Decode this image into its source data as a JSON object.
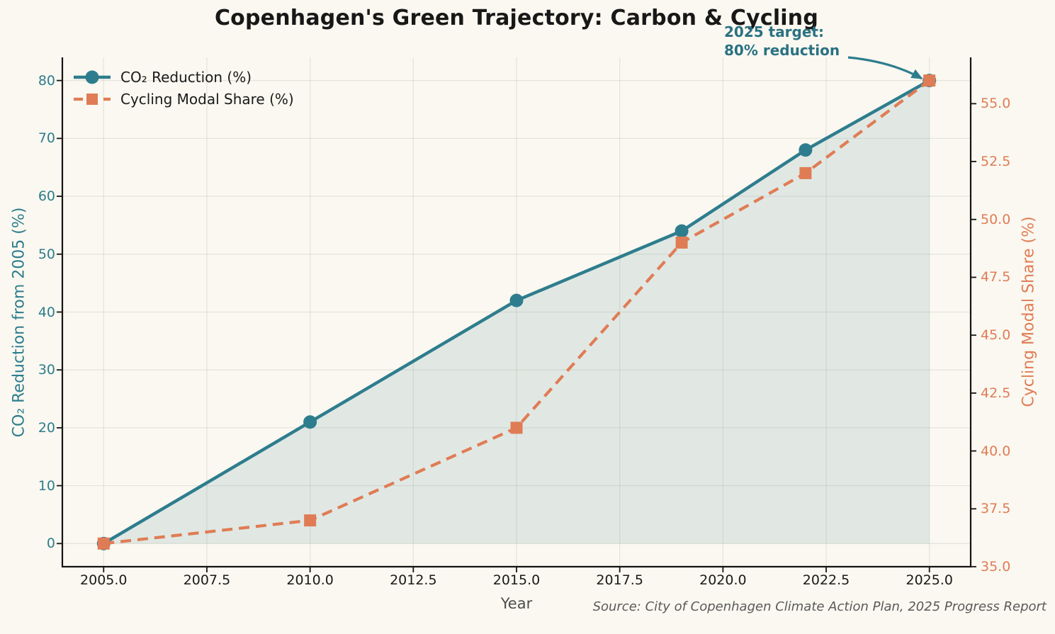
{
  "chart_data": {
    "type": "line",
    "title": "Copenhagen's Green Trajectory: Carbon & Cycling",
    "xlabel": "Year",
    "ylabel_left": "CO₂ Reduction from 2005 (%)",
    "ylabel_right": "Cycling Modal Share (%)",
    "source": "Source: City of Copenhagen Climate Action Plan, 2025 Progress Report",
    "x": [
      2005,
      2010,
      2015,
      2019,
      2022,
      2025
    ],
    "series": [
      {
        "name": "CO₂ Reduction (%)",
        "axis": "left",
        "values": [
          0,
          21,
          42,
          54,
          68,
          80
        ],
        "color": "#2e7d8e",
        "style": "solid",
        "marker": "circle",
        "fill_to_zero": true
      },
      {
        "name": "Cycling Modal Share (%)",
        "axis": "right",
        "values": [
          36,
          37,
          41,
          49,
          52,
          56
        ],
        "color": "#e07c55",
        "style": "dashed",
        "marker": "square",
        "fill_to_zero": false
      }
    ],
    "xlim": [
      2004,
      2026
    ],
    "ylim_left": [
      -4,
      84
    ],
    "ylim_right": [
      35,
      57
    ],
    "x_ticks": [
      {
        "value": 2005,
        "label": "2005.0"
      },
      {
        "value": 2007.5,
        "label": "2007.5"
      },
      {
        "value": 2010,
        "label": "2010.0"
      },
      {
        "value": 2012.5,
        "label": "2012.5"
      },
      {
        "value": 2015,
        "label": "2015.0"
      },
      {
        "value": 2017.5,
        "label": "2017.5"
      },
      {
        "value": 2020,
        "label": "2020.0"
      },
      {
        "value": 2022.5,
        "label": "2022.5"
      },
      {
        "value": 2025,
        "label": "2025.0"
      }
    ],
    "y_left_ticks": [
      {
        "value": 0,
        "label": "0"
      },
      {
        "value": 10,
        "label": "10"
      },
      {
        "value": 20,
        "label": "20"
      },
      {
        "value": 30,
        "label": "30"
      },
      {
        "value": 40,
        "label": "40"
      },
      {
        "value": 50,
        "label": "50"
      },
      {
        "value": 60,
        "label": "60"
      },
      {
        "value": 70,
        "label": "70"
      },
      {
        "value": 80,
        "label": "80"
      }
    ],
    "y_right_ticks": [
      {
        "value": 35,
        "label": "35.0"
      },
      {
        "value": 37.5,
        "label": "37.5"
      },
      {
        "value": 40,
        "label": "40.0"
      },
      {
        "value": 42.5,
        "label": "42.5"
      },
      {
        "value": 45,
        "label": "45.0"
      },
      {
        "value": 47.5,
        "label": "47.5"
      },
      {
        "value": 50,
        "label": "50.0"
      },
      {
        "value": 52.5,
        "label": "52.5"
      },
      {
        "value": 55,
        "label": "55.0"
      }
    ],
    "grid": true,
    "legend_position": "upper left",
    "annotation": {
      "line1": "2025 target:",
      "line2": "80% reduction",
      "color": "#2a7183",
      "target_x": 2025,
      "target_y_left": 80
    },
    "colors": {
      "background": "#faf8f0",
      "co2_teal": "#2e7d8e",
      "cycling_orange": "#e07c55",
      "fill": "rgba(46,125,142,0.12)",
      "grid": "rgba(130,130,118,0.16)",
      "spine": "#141414"
    }
  }
}
